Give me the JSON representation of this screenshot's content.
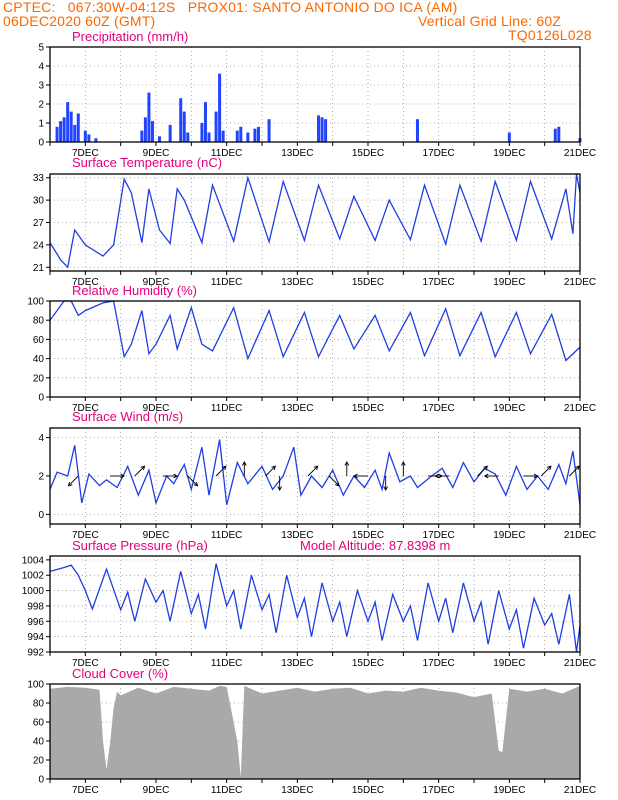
{
  "header": {
    "line1_left": "CPTEC:   067:30W-04:12S   PROX01: SANTO ANTONIO DO ICA (AM)",
    "line2_left": "06DEC2020 60Z (GMT)",
    "line2_right": "Vertical Grid Line: 60Z",
    "line3_right": "TQ0126L028"
  },
  "x_tick_labels": [
    "7DEC",
    "9DEC",
    "11DEC",
    "13DEC",
    "15DEC",
    "17DEC",
    "19DEC",
    "21DEC"
  ],
  "extra_label": "Model Altitude: 87.8398 m",
  "colors": {
    "line": "#1f3fe0",
    "bar": "#2244ff",
    "cloud": "#a9a9a9",
    "title": "#e6007e",
    "header": "#ff6600"
  },
  "chart_data": [
    {
      "type": "bar",
      "title": "Precipitation (mm/h)",
      "ylim": [
        0,
        5
      ],
      "yticks": [
        0,
        1,
        2,
        3,
        4,
        5
      ],
      "x_range_days": [
        6,
        21
      ],
      "values": [
        [
          6.2,
          0.8
        ],
        [
          6.3,
          1.1
        ],
        [
          6.4,
          1.3
        ],
        [
          6.5,
          2.1
        ],
        [
          6.6,
          1.6
        ],
        [
          6.7,
          0.9
        ],
        [
          6.8,
          1.5
        ],
        [
          7.0,
          0.6
        ],
        [
          7.1,
          0.4
        ],
        [
          7.3,
          0.2
        ],
        [
          8.6,
          0.6
        ],
        [
          8.7,
          1.3
        ],
        [
          8.8,
          2.6
        ],
        [
          8.9,
          1.1
        ],
        [
          9.1,
          0.3
        ],
        [
          9.4,
          0.9
        ],
        [
          9.7,
          2.3
        ],
        [
          9.8,
          1.6
        ],
        [
          9.9,
          0.5
        ],
        [
          10.3,
          1.0
        ],
        [
          10.4,
          2.1
        ],
        [
          10.5,
          0.5
        ],
        [
          10.7,
          1.6
        ],
        [
          10.8,
          3.6
        ],
        [
          10.9,
          0.6
        ],
        [
          11.3,
          0.6
        ],
        [
          11.4,
          0.8
        ],
        [
          11.6,
          0.5
        ],
        [
          11.8,
          0.7
        ],
        [
          11.9,
          0.8
        ],
        [
          12.2,
          1.2
        ],
        [
          13.6,
          1.4
        ],
        [
          13.7,
          1.3
        ],
        [
          13.8,
          1.2
        ],
        [
          16.4,
          1.2
        ],
        [
          19.0,
          0.5
        ],
        [
          20.3,
          0.7
        ],
        [
          20.4,
          0.8
        ],
        [
          21.0,
          0.2
        ]
      ]
    },
    {
      "type": "line",
      "title": "Surface Temperature (nC)",
      "ylim": [
        20.5,
        33.5
      ],
      "yticks": [
        21,
        24,
        27,
        30,
        33
      ],
      "x_range_days": [
        6,
        21
      ],
      "points": [
        [
          6.0,
          24.3
        ],
        [
          6.3,
          22.0
        ],
        [
          6.5,
          21.0
        ],
        [
          6.7,
          26.0
        ],
        [
          7.0,
          24.0
        ],
        [
          7.5,
          22.5
        ],
        [
          7.8,
          24.0
        ],
        [
          8.1,
          32.8
        ],
        [
          8.3,
          31.0
        ],
        [
          8.6,
          24.3
        ],
        [
          8.8,
          31.5
        ],
        [
          9.1,
          26.0
        ],
        [
          9.4,
          24.2
        ],
        [
          9.6,
          31.5
        ],
        [
          9.8,
          30.0
        ],
        [
          10.3,
          24.3
        ],
        [
          10.6,
          32.0
        ],
        [
          11.2,
          24.5
        ],
        [
          11.6,
          33.0
        ],
        [
          12.2,
          24.4
        ],
        [
          12.6,
          32.5
        ],
        [
          13.2,
          24.6
        ],
        [
          13.6,
          32.0
        ],
        [
          14.2,
          24.8
        ],
        [
          14.6,
          30.5
        ],
        [
          15.2,
          24.6
        ],
        [
          15.6,
          30.0
        ],
        [
          16.2,
          24.7
        ],
        [
          16.6,
          32.0
        ],
        [
          17.2,
          24.1
        ],
        [
          17.6,
          32.0
        ],
        [
          18.2,
          24.5
        ],
        [
          18.6,
          32.5
        ],
        [
          19.2,
          24.6
        ],
        [
          19.6,
          32.5
        ],
        [
          20.2,
          24.8
        ],
        [
          20.6,
          31.5
        ],
        [
          20.8,
          25.5
        ],
        [
          20.9,
          33.5
        ],
        [
          21.0,
          31.0
        ]
      ]
    },
    {
      "type": "line",
      "title": "Relative Humidity (%)",
      "ylim": [
        0,
        100
      ],
      "yticks": [
        0,
        20,
        40,
        60,
        80,
        100
      ],
      "x_range_days": [
        6,
        21
      ],
      "points": [
        [
          6.0,
          80
        ],
        [
          6.4,
          100
        ],
        [
          6.6,
          100
        ],
        [
          6.8,
          85
        ],
        [
          7.0,
          90
        ],
        [
          7.5,
          98
        ],
        [
          7.8,
          100
        ],
        [
          8.1,
          42
        ],
        [
          8.3,
          55
        ],
        [
          8.6,
          90
        ],
        [
          8.8,
          45
        ],
        [
          9.0,
          55
        ],
        [
          9.4,
          85
        ],
        [
          9.6,
          50
        ],
        [
          10.0,
          93
        ],
        [
          10.3,
          55
        ],
        [
          10.6,
          48
        ],
        [
          11.2,
          93
        ],
        [
          11.6,
          40
        ],
        [
          12.2,
          90
        ],
        [
          12.6,
          42
        ],
        [
          13.2,
          88
        ],
        [
          13.6,
          42
        ],
        [
          14.2,
          85
        ],
        [
          14.6,
          50
        ],
        [
          15.2,
          85
        ],
        [
          15.6,
          48
        ],
        [
          16.2,
          88
        ],
        [
          16.6,
          43
        ],
        [
          17.2,
          92
        ],
        [
          17.6,
          43
        ],
        [
          18.2,
          88
        ],
        [
          18.6,
          42
        ],
        [
          19.2,
          88
        ],
        [
          19.6,
          45
        ],
        [
          20.2,
          86
        ],
        [
          20.6,
          38
        ],
        [
          21.0,
          52
        ]
      ]
    },
    {
      "type": "line",
      "title": "Surface Wind (m/s)",
      "ylim": [
        -0.5,
        4.5
      ],
      "yticks": [
        0,
        2,
        4
      ],
      "x_range_days": [
        6,
        21
      ],
      "points": [
        [
          6.0,
          1.3
        ],
        [
          6.2,
          2.2
        ],
        [
          6.5,
          2.0
        ],
        [
          6.7,
          3.6
        ],
        [
          6.9,
          0.6
        ],
        [
          7.1,
          2.1
        ],
        [
          7.4,
          1.5
        ],
        [
          7.6,
          1.8
        ],
        [
          7.9,
          1.4
        ],
        [
          8.2,
          2.5
        ],
        [
          8.5,
          1.0
        ],
        [
          8.8,
          2.3
        ],
        [
          9.0,
          0.6
        ],
        [
          9.3,
          2.0
        ],
        [
          9.5,
          1.6
        ],
        [
          9.8,
          2.6
        ],
        [
          10.0,
          1.3
        ],
        [
          10.3,
          3.5
        ],
        [
          10.5,
          1.0
        ],
        [
          10.8,
          3.9
        ],
        [
          11.0,
          0.5
        ],
        [
          11.3,
          2.7
        ],
        [
          11.6,
          1.6
        ],
        [
          12.0,
          2.5
        ],
        [
          12.3,
          1.3
        ],
        [
          12.6,
          2.0
        ],
        [
          12.9,
          3.5
        ],
        [
          13.1,
          1.0
        ],
        [
          13.4,
          2.0
        ],
        [
          13.7,
          1.4
        ],
        [
          14.0,
          2.3
        ],
        [
          14.3,
          1.0
        ],
        [
          14.6,
          2.0
        ],
        [
          14.9,
          1.4
        ],
        [
          15.2,
          2.3
        ],
        [
          15.4,
          1.3
        ],
        [
          15.6,
          3.2
        ],
        [
          15.9,
          1.7
        ],
        [
          16.2,
          2.0
        ],
        [
          16.4,
          1.4
        ],
        [
          16.8,
          2.0
        ],
        [
          17.1,
          2.4
        ],
        [
          17.4,
          1.4
        ],
        [
          17.7,
          2.7
        ],
        [
          18.0,
          1.7
        ],
        [
          18.3,
          2.4
        ],
        [
          18.6,
          2.1
        ],
        [
          18.9,
          1.0
        ],
        [
          19.2,
          2.5
        ],
        [
          19.5,
          1.3
        ],
        [
          19.8,
          2.0
        ],
        [
          20.1,
          1.3
        ],
        [
          20.4,
          2.6
        ],
        [
          20.6,
          1.6
        ],
        [
          20.8,
          3.3
        ],
        [
          21.0,
          0.5
        ]
      ],
      "arrows": [
        [
          6.8,
          "sw"
        ],
        [
          7.7,
          "e"
        ],
        [
          8.4,
          "ne"
        ],
        [
          9.2,
          "e"
        ],
        [
          9.9,
          "se"
        ],
        [
          10.7,
          "ne"
        ],
        [
          11.5,
          "n"
        ],
        [
          12.1,
          "ne"
        ],
        [
          12.5,
          "s"
        ],
        [
          13.3,
          "ne"
        ],
        [
          13.9,
          "se"
        ],
        [
          14.4,
          "n"
        ],
        [
          15.0,
          "w"
        ],
        [
          15.5,
          "s"
        ],
        [
          16.0,
          "n"
        ],
        [
          16.7,
          "e"
        ],
        [
          17.3,
          "w"
        ],
        [
          18.1,
          "ne"
        ],
        [
          18.7,
          "w"
        ],
        [
          19.4,
          "e"
        ],
        [
          19.9,
          "ne"
        ],
        [
          20.7,
          "ne"
        ]
      ]
    },
    {
      "type": "line",
      "title": "Surface Pressure (hPa)",
      "ylim": [
        992,
        1004.5
      ],
      "yticks": [
        992,
        994,
        996,
        998,
        1000,
        1002,
        1004
      ],
      "x_range_days": [
        6,
        21
      ],
      "points": [
        [
          6.0,
          1002.5
        ],
        [
          6.4,
          1003.0
        ],
        [
          6.6,
          1003.3
        ],
        [
          6.8,
          1002.0
        ],
        [
          7.0,
          1000.0
        ],
        [
          7.2,
          997.6
        ],
        [
          7.6,
          1002.8
        ],
        [
          8.0,
          997.5
        ],
        [
          8.2,
          999.8
        ],
        [
          8.4,
          996.0
        ],
        [
          8.7,
          1001.5
        ],
        [
          9.0,
          998.5
        ],
        [
          9.2,
          1000.0
        ],
        [
          9.4,
          996.0
        ],
        [
          9.7,
          1002.5
        ],
        [
          10.0,
          997.0
        ],
        [
          10.2,
          999.5
        ],
        [
          10.4,
          995.0
        ],
        [
          10.7,
          1003.5
        ],
        [
          11.0,
          998.0
        ],
        [
          11.2,
          1000.0
        ],
        [
          11.4,
          995.0
        ],
        [
          11.7,
          1002.0
        ],
        [
          12.0,
          997.5
        ],
        [
          12.2,
          999.5
        ],
        [
          12.4,
          994.5
        ],
        [
          12.7,
          1002.0
        ],
        [
          13.0,
          996.5
        ],
        [
          13.2,
          999.0
        ],
        [
          13.4,
          994.0
        ],
        [
          13.7,
          1001.0
        ],
        [
          14.0,
          996.0
        ],
        [
          14.2,
          998.5
        ],
        [
          14.4,
          994.0
        ],
        [
          14.7,
          1000.0
        ],
        [
          15.0,
          996.0
        ],
        [
          15.2,
          998.5
        ],
        [
          15.4,
          993.5
        ],
        [
          15.7,
          999.5
        ],
        [
          16.0,
          996.0
        ],
        [
          16.2,
          998.0
        ],
        [
          16.4,
          993.5
        ],
        [
          16.7,
          1001.0
        ],
        [
          17.0,
          996.0
        ],
        [
          17.2,
          999.0
        ],
        [
          17.4,
          994.5
        ],
        [
          17.7,
          1001.0
        ],
        [
          18.0,
          996.0
        ],
        [
          18.2,
          998.5
        ],
        [
          18.4,
          993.0
        ],
        [
          18.7,
          1000.0
        ],
        [
          19.0,
          995.0
        ],
        [
          19.2,
          997.5
        ],
        [
          19.4,
          992.5
        ],
        [
          19.7,
          999.0
        ],
        [
          20.0,
          995.5
        ],
        [
          20.2,
          997.0
        ],
        [
          20.4,
          993.0
        ],
        [
          20.7,
          999.5
        ],
        [
          20.9,
          992.0
        ],
        [
          21.0,
          995.5
        ]
      ]
    },
    {
      "type": "area",
      "title": "Cloud Cover (%)",
      "ylim": [
        0,
        100
      ],
      "yticks": [
        0,
        20,
        40,
        60,
        80,
        100
      ],
      "x_range_days": [
        6,
        21
      ],
      "points": [
        [
          6.0,
          95
        ],
        [
          6.5,
          97
        ],
        [
          7.0,
          96
        ],
        [
          7.4,
          94
        ],
        [
          7.5,
          40
        ],
        [
          7.6,
          10
        ],
        [
          7.7,
          38
        ],
        [
          7.8,
          75
        ],
        [
          7.9,
          92
        ],
        [
          8.0,
          88
        ],
        [
          8.5,
          96
        ],
        [
          9.0,
          90
        ],
        [
          9.5,
          97
        ],
        [
          10.0,
          95
        ],
        [
          10.5,
          93
        ],
        [
          10.8,
          98
        ],
        [
          11.0,
          97
        ],
        [
          11.3,
          40
        ],
        [
          11.4,
          2
        ],
        [
          11.5,
          98
        ],
        [
          12.0,
          90
        ],
        [
          12.5,
          93
        ],
        [
          13.0,
          96
        ],
        [
          13.5,
          92
        ],
        [
          14.0,
          95
        ],
        [
          14.5,
          96
        ],
        [
          15.0,
          90
        ],
        [
          15.5,
          93
        ],
        [
          16.0,
          92
        ],
        [
          16.5,
          96
        ],
        [
          17.0,
          93
        ],
        [
          17.5,
          91
        ],
        [
          18.0,
          86
        ],
        [
          18.5,
          90
        ],
        [
          18.7,
          30
        ],
        [
          18.8,
          28
        ],
        [
          19.0,
          95
        ],
        [
          19.5,
          92
        ],
        [
          20.0,
          95
        ],
        [
          20.5,
          90
        ],
        [
          21.0,
          98
        ]
      ]
    }
  ]
}
